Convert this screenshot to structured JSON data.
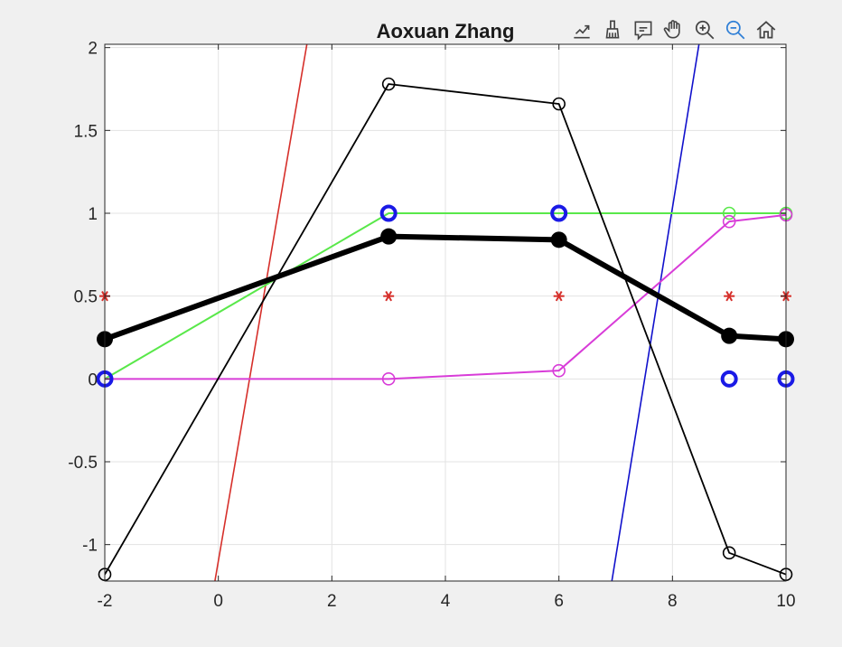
{
  "chart_data": {
    "type": "line",
    "title": "Aoxuan Zhang",
    "xlabel": "",
    "ylabel": "",
    "xlim": [
      -2,
      10
    ],
    "ylim": [
      -1.22,
      2.02
    ],
    "grid": true,
    "x_ticks": [
      -2,
      0,
      2,
      4,
      6,
      8,
      10
    ],
    "x_tick_labels": [
      "-2",
      "0",
      "2",
      "4",
      "6",
      "8",
      "10"
    ],
    "y_ticks": [
      -1,
      -0.5,
      0,
      0.5,
      1,
      1.5,
      2
    ],
    "y_tick_labels": [
      "-1",
      "-0.5",
      "0",
      "0.5",
      "1",
      "1.5",
      "2"
    ],
    "series": [
      {
        "kind": "line",
        "color": "#d62f2a",
        "width": 1.6,
        "points": [
          [
            -0.2,
            -1.5
          ],
          [
            1.7,
            2.3
          ]
        ]
      },
      {
        "kind": "line",
        "color": "#1010cc",
        "width": 1.6,
        "points": [
          [
            6.8,
            -1.5
          ],
          [
            8.6,
            2.3
          ]
        ]
      },
      {
        "kind": "line",
        "color": "#59e84a",
        "width": 2,
        "marker": "open-circle",
        "points": [
          [
            -2,
            0
          ],
          [
            3,
            1
          ],
          [
            6,
            1
          ],
          [
            9,
            1
          ],
          [
            10,
            1
          ]
        ]
      },
      {
        "kind": "line",
        "color": "#d83cd8",
        "width": 2,
        "marker": "open-circle",
        "points": [
          [
            -2,
            0
          ],
          [
            3,
            0
          ],
          [
            6,
            0.05
          ],
          [
            9,
            0.95
          ],
          [
            10,
            0.99
          ]
        ]
      },
      {
        "kind": "line",
        "color": "#000000",
        "width": 1.8,
        "marker": "open-circle",
        "points": [
          [
            -2,
            -1.18
          ],
          [
            3,
            1.78
          ],
          [
            6,
            1.66
          ],
          [
            9,
            -1.05
          ],
          [
            10,
            -1.18
          ]
        ]
      },
      {
        "kind": "markers",
        "color": "#1a1ae6",
        "marker": "ring",
        "points": [
          [
            -2,
            0
          ],
          [
            3,
            1
          ],
          [
            6,
            1
          ],
          [
            9,
            0
          ],
          [
            10,
            0
          ]
        ]
      },
      {
        "kind": "markers",
        "color": "#d62f2a",
        "marker": "asterisk",
        "points": [
          [
            -2,
            0.5
          ],
          [
            3,
            0.5
          ],
          [
            6,
            0.5
          ],
          [
            9,
            0.5
          ],
          [
            10,
            0.5
          ]
        ]
      },
      {
        "kind": "line",
        "color": "#000000",
        "width": 6,
        "marker": "filled-circle",
        "points": [
          [
            -2,
            0.24
          ],
          [
            3,
            0.86
          ],
          [
            6,
            0.84
          ],
          [
            9,
            0.26
          ],
          [
            10,
            0.24
          ]
        ]
      }
    ]
  },
  "toolbar": {
    "icons": [
      "export-icon",
      "brush-icon",
      "datatip-icon",
      "pan-icon",
      "zoom-in-icon",
      "zoom-out-icon",
      "home-icon"
    ]
  }
}
